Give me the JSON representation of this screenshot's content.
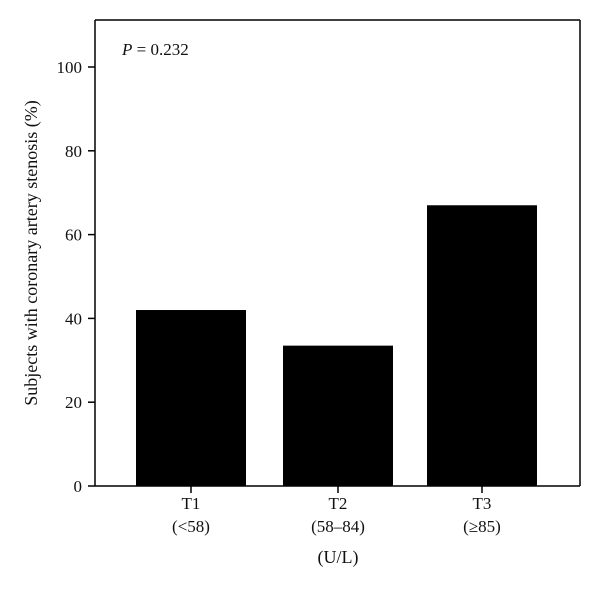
{
  "chart_data": {
    "type": "bar",
    "categories": [
      "T1",
      "T2",
      "T3"
    ],
    "category_sublabels": [
      "(<58)",
      "(58–84)",
      "(≥85)"
    ],
    "values": [
      42,
      33.5,
      67
    ],
    "xlabel": "(U/L)",
    "ylabel": "Subjects with coronary artery stenosis (%)",
    "ylim": [
      0,
      100
    ],
    "yticks": [
      0,
      20,
      40,
      60,
      80,
      100
    ],
    "annotation": {
      "label": "P",
      "value": " = 0.232"
    },
    "bar_color": "#000000",
    "grid": false,
    "legend": "none"
  }
}
